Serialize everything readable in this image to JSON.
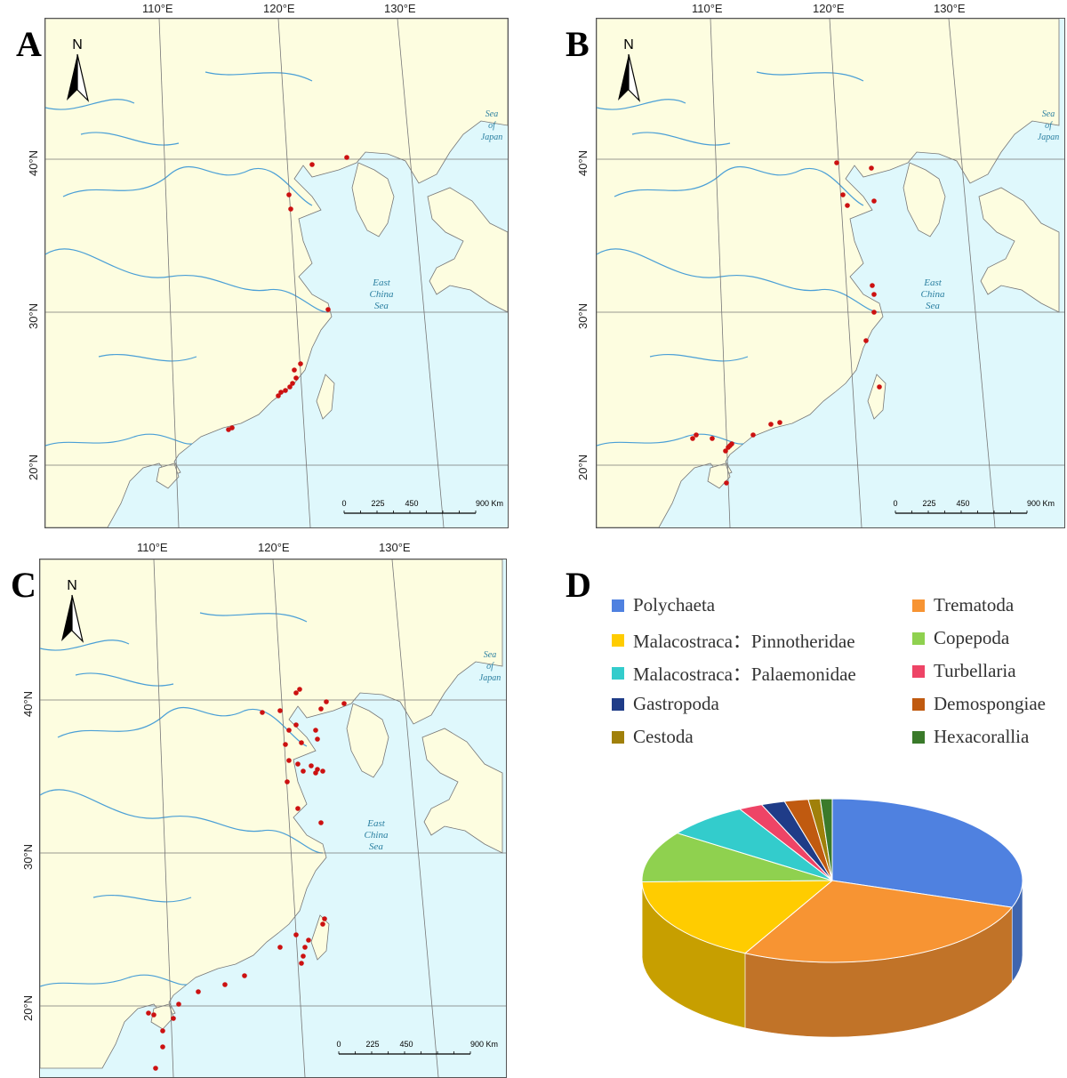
{
  "panels": [
    {
      "letter": "A",
      "lon_labels": [
        "110°E",
        "120°E",
        "130°E"
      ],
      "lat_labels": [
        "40°N",
        "30°N",
        "20°N"
      ],
      "sea_labels": {
        "japan": [
          "Sea",
          "of",
          "Japan"
        ],
        "ecs": [
          "East",
          "China",
          "Sea"
        ]
      },
      "scale": [
        "0",
        "225",
        "450",
        "900 Km"
      ],
      "north": "N"
    },
    {
      "letter": "B",
      "lon_labels": [
        "110°E",
        "120°E",
        "130°E"
      ],
      "lat_labels": [
        "40°N",
        "30°N",
        "20°N"
      ],
      "sea_labels": {
        "japan": [
          "Sea",
          "of",
          "Japan"
        ],
        "ecs": [
          "East",
          "China",
          "Sea"
        ]
      },
      "scale": [
        "0",
        "225",
        "450",
        "900 Km"
      ],
      "north": "N"
    },
    {
      "letter": "C",
      "lon_labels": [
        "110°E",
        "120°E",
        "130°E"
      ],
      "lat_labels": [
        "40°N",
        "30°N",
        "20°N"
      ],
      "sea_labels": {
        "japan": [
          "Sea",
          "of",
          "Japan"
        ],
        "ecs": [
          "East",
          "China",
          "Sea"
        ]
      },
      "scale": [
        "0",
        "225",
        "450",
        "900 Km"
      ],
      "north": "N"
    }
  ],
  "colors": {
    "land": "#fdfde0",
    "sea": "#dff8fc",
    "river": "#4a9fd6",
    "dot": "#cc1111",
    "grid": "#777777",
    "sea_text": "#2a7fa0"
  },
  "panel_d": {
    "letter": "D",
    "chart_data": {
      "type": "pie",
      "legend": [
        {
          "name": "Polychaeta",
          "color": "#4f81e0"
        },
        {
          "name": "Trematoda",
          "color": "#f79433"
        },
        {
          "name": "Malacostraca：Pinnotheridae",
          "color": "#ffcc00"
        },
        {
          "name": "Copepoda",
          "color": "#8fd14f"
        },
        {
          "name": "Malacostraca：Palaemonidae",
          "color": "#33cccc"
        },
        {
          "name": "Turbellaria",
          "color": "#ee4466"
        },
        {
          "name": "Gastropoda",
          "color": "#1f3c88"
        },
        {
          "name": "Demospongiae",
          "color": "#c05a10"
        },
        {
          "name": "Cestoda",
          "color": "#a0800a"
        },
        {
          "name": "Hexacorallia",
          "color": "#3a7a2a"
        }
      ],
      "values_percent": [
        {
          "name": "Polychaeta",
          "value": 30
        },
        {
          "name": "Trematoda",
          "value": 27
        },
        {
          "name": "Malacostraca：Pinnotheridae",
          "value": 17
        },
        {
          "name": "Copepoda",
          "value": 10
        },
        {
          "name": "Malacostraca：Palaemonidae",
          "value": 7
        },
        {
          "name": "Turbellaria",
          "value": 2
        },
        {
          "name": "Gastropoda",
          "value": 2
        },
        {
          "name": "Demospongiae",
          "value": 2
        },
        {
          "name": "Cestoda",
          "value": 1
        },
        {
          "name": "Hexacorallia",
          "value": 1
        }
      ]
    }
  }
}
